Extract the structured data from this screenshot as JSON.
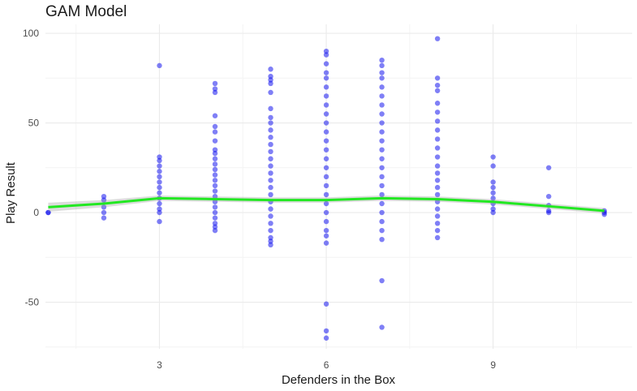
{
  "chart_data": {
    "type": "scatter",
    "title": "GAM Model",
    "xlabel": "Defenders in the Box",
    "ylabel": "Play Result",
    "xlim": [
      0.95,
      11.5
    ],
    "ylim": [
      -76,
      105
    ],
    "x_ticks": [
      3,
      6,
      9
    ],
    "x_tick_labels": [
      "3",
      "6",
      "9"
    ],
    "y_ticks": [
      -50,
      0,
      50,
      100
    ],
    "y_tick_labels": [
      "-50",
      "0",
      "50",
      "100"
    ],
    "grid": true,
    "legend": "none",
    "colors": {
      "points": "#0000ee",
      "smooth": "#22e822",
      "grid_major": "#ebebeb",
      "grid_minor": "#f4f4f4"
    },
    "series": [
      {
        "type": "scatter",
        "clusters": [
          {
            "x": 1,
            "y": [
              0,
              0
            ]
          },
          {
            "x": 2,
            "y": [
              -3,
              0,
              3,
              7,
              9
            ]
          },
          {
            "x": 3,
            "y": [
              82,
              31,
              29,
              26,
              23,
              20,
              17,
              14,
              11,
              8,
              5,
              2,
              0,
              -5
            ]
          },
          {
            "x": 4,
            "y": [
              72,
              69,
              67,
              54,
              48,
              45,
              40,
              35,
              33,
              30,
              27,
              24,
              21,
              18,
              15,
              12,
              9,
              6,
              3,
              0,
              -3,
              -6,
              -8,
              -10
            ]
          },
          {
            "x": 5,
            "y": [
              80,
              76,
              74,
              72,
              67,
              58,
              53,
              50,
              46,
              42,
              38,
              34,
              30,
              26,
              22,
              18,
              14,
              10,
              6,
              2,
              -2,
              -6,
              -10,
              -14,
              -16,
              -18
            ]
          },
          {
            "x": 6,
            "y": [
              90,
              88,
              83,
              78,
              75,
              70,
              65,
              60,
              55,
              50,
              45,
              40,
              35,
              30,
              25,
              20,
              15,
              10,
              5,
              0,
              -5,
              -10,
              -13,
              -17,
              -51,
              -66,
              -70
            ]
          },
          {
            "x": 7,
            "y": [
              85,
              82,
              78,
              75,
              70,
              65,
              60,
              55,
              50,
              45,
              40,
              35,
              30,
              25,
              20,
              15,
              10,
              5,
              0,
              -5,
              -10,
              -15,
              -38,
              -64
            ]
          },
          {
            "x": 8,
            "y": [
              97,
              75,
              71,
              68,
              61,
              56,
              51,
              46,
              41,
              36,
              31,
              26,
              22,
              18,
              14,
              10,
              6,
              2,
              -2,
              -6,
              -10,
              -14
            ]
          },
          {
            "x": 9,
            "y": [
              31,
              26,
              17,
              14,
              11,
              8,
              5,
              2,
              0
            ]
          },
          {
            "x": 10,
            "y": [
              25,
              9,
              4,
              1,
              0
            ]
          },
          {
            "x": 11,
            "y": [
              1,
              0,
              -1
            ]
          }
        ]
      },
      {
        "type": "line",
        "x": [
          1,
          2,
          3,
          4,
          5,
          6,
          7,
          8,
          9,
          10,
          11
        ],
        "y": [
          3,
          5,
          8,
          7.5,
          7,
          7,
          8,
          7.5,
          6,
          3.5,
          1
        ],
        "ribbon_half_width": [
          2.5,
          2,
          1.5,
          1.5,
          1.5,
          1.5,
          1.5,
          1.5,
          1.5,
          1.5,
          1.5
        ]
      }
    ]
  }
}
